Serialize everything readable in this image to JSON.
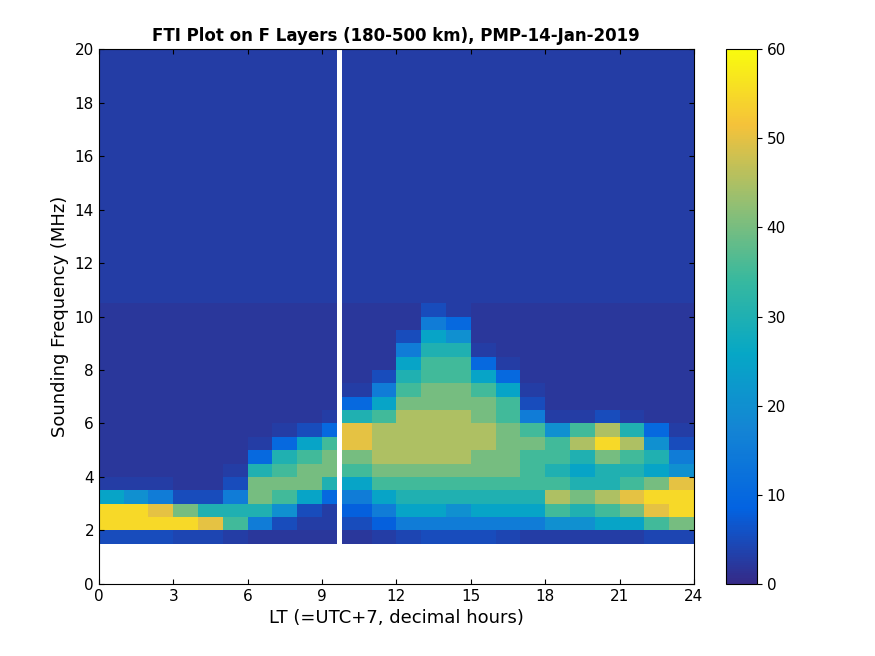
{
  "chart_data": {
    "type": "heatmap",
    "title": "FTI Plot on F Layers (180-500 km), PMP-14-Jan-2019",
    "x_label": "LT (=UTC+7, decimal hours)",
    "y_label": "Sounding Frequency (MHz)",
    "xlim": [
      0,
      24
    ],
    "xticks": [
      0,
      3,
      6,
      9,
      12,
      15,
      18,
      21,
      24
    ],
    "ylim": [
      0,
      20
    ],
    "yticks": [
      0,
      2,
      4,
      6,
      8,
      10,
      12,
      14,
      16,
      18,
      20
    ],
    "x_edges": [
      0,
      1,
      2,
      3,
      4,
      5,
      6,
      7,
      8,
      9,
      9.6,
      9.8,
      11,
      12,
      13,
      14,
      15,
      16,
      17,
      18,
      19,
      20,
      21,
      22,
      23,
      24
    ],
    "y_edges": [
      1.5,
      2,
      2.5,
      3,
      3.5,
      4,
      4.5,
      5,
      5.5,
      6,
      6.5,
      7,
      7.5,
      8,
      8.5,
      9,
      9.5,
      10,
      10.5,
      12,
      14,
      16,
      18,
      20
    ],
    "cells": [
      [
        5,
        5,
        5,
        4,
        4,
        3,
        2,
        2,
        2,
        2,
        null,
        2,
        3,
        4,
        5,
        5,
        5,
        4,
        3,
        3,
        3,
        3,
        3,
        4,
        4
      ],
      [
        55,
        55,
        55,
        55,
        50,
        35,
        15,
        5,
        3,
        3,
        null,
        5,
        8,
        15,
        15,
        15,
        15,
        15,
        15,
        20,
        20,
        25,
        25,
        35,
        40
      ],
      [
        55,
        55,
        50,
        40,
        30,
        30,
        30,
        20,
        5,
        3,
        null,
        8,
        15,
        25,
        25,
        20,
        25,
        25,
        25,
        35,
        30,
        35,
        40,
        50,
        55
      ],
      [
        25,
        20,
        15,
        5,
        5,
        15,
        40,
        35,
        25,
        10,
        null,
        15,
        25,
        30,
        30,
        30,
        30,
        30,
        30,
        45,
        40,
        45,
        50,
        55,
        55
      ],
      [
        3,
        3,
        3,
        2,
        2,
        5,
        40,
        40,
        40,
        30,
        null,
        25,
        35,
        35,
        35,
        35,
        35,
        35,
        35,
        35,
        30,
        30,
        35,
        40,
        50
      ],
      [
        2,
        2,
        2,
        2,
        2,
        3,
        30,
        35,
        40,
        40,
        null,
        35,
        40,
        40,
        40,
        40,
        40,
        40,
        35,
        30,
        25,
        30,
        30,
        25,
        20
      ],
      [
        2,
        2,
        2,
        2,
        2,
        2,
        10,
        30,
        35,
        40,
        null,
        40,
        45,
        45,
        45,
        45,
        40,
        40,
        35,
        35,
        30,
        40,
        35,
        30,
        15
      ],
      [
        2,
        2,
        2,
        2,
        2,
        2,
        3,
        10,
        25,
        35,
        null,
        50,
        45,
        45,
        45,
        45,
        45,
        40,
        40,
        35,
        45,
        55,
        45,
        20,
        5
      ],
      [
        2,
        2,
        2,
        2,
        2,
        2,
        2,
        3,
        5,
        10,
        null,
        50,
        45,
        45,
        45,
        45,
        45,
        40,
        35,
        20,
        35,
        45,
        30,
        10,
        3
      ],
      [
        2,
        2,
        2,
        2,
        2,
        2,
        2,
        2,
        2,
        3,
        null,
        30,
        35,
        45,
        45,
        45,
        40,
        35,
        15,
        3,
        3,
        5,
        3,
        2,
        2
      ],
      [
        2,
        2,
        2,
        2,
        2,
        2,
        2,
        2,
        2,
        2,
        null,
        10,
        25,
        40,
        40,
        40,
        40,
        35,
        5,
        2,
        2,
        2,
        2,
        2,
        2
      ],
      [
        2,
        2,
        2,
        2,
        2,
        2,
        2,
        2,
        2,
        2,
        null,
        3,
        15,
        35,
        40,
        40,
        35,
        25,
        3,
        2,
        2,
        2,
        2,
        2,
        2
      ],
      [
        2,
        2,
        2,
        2,
        2,
        2,
        2,
        2,
        2,
        2,
        null,
        2,
        5,
        30,
        35,
        35,
        25,
        10,
        2,
        2,
        2,
        2,
        2,
        2,
        2
      ],
      [
        2,
        2,
        2,
        2,
        2,
        2,
        2,
        2,
        2,
        2,
        null,
        2,
        2,
        25,
        35,
        35,
        10,
        3,
        2,
        2,
        2,
        2,
        2,
        2,
        2
      ],
      [
        2,
        2,
        2,
        2,
        2,
        2,
        2,
        2,
        2,
        2,
        null,
        2,
        2,
        15,
        30,
        30,
        3,
        2,
        2,
        2,
        2,
        2,
        2,
        2,
        2
      ],
      [
        2,
        2,
        2,
        2,
        2,
        2,
        2,
        2,
        2,
        2,
        null,
        2,
        2,
        5,
        25,
        20,
        2,
        2,
        2,
        2,
        2,
        2,
        2,
        2,
        2
      ],
      [
        2,
        2,
        2,
        2,
        2,
        2,
        2,
        2,
        2,
        2,
        null,
        2,
        2,
        2,
        15,
        10,
        2,
        2,
        2,
        2,
        2,
        2,
        2,
        2,
        2
      ],
      [
        2,
        2,
        2,
        2,
        2,
        2,
        2,
        2,
        2,
        2,
        null,
        2,
        2,
        2,
        5,
        3,
        2,
        2,
        2,
        2,
        2,
        2,
        2,
        2,
        2
      ],
      [
        3,
        3,
        3,
        3,
        3,
        3,
        3,
        3,
        3,
        3,
        null,
        3,
        3,
        3,
        3,
        3,
        3,
        3,
        3,
        3,
        3,
        3,
        3,
        3,
        3
      ],
      [
        3,
        3,
        3,
        3,
        3,
        3,
        3,
        3,
        3,
        3,
        null,
        3,
        3,
        3,
        3,
        3,
        3,
        3,
        3,
        3,
        3,
        3,
        3,
        3,
        3
      ],
      [
        3,
        3,
        3,
        3,
        3,
        3,
        3,
        3,
        3,
        3,
        null,
        3,
        3,
        3,
        3,
        3,
        3,
        3,
        3,
        3,
        3,
        3,
        3,
        3,
        3
      ],
      [
        3,
        3,
        3,
        3,
        3,
        3,
        3,
        3,
        3,
        3,
        null,
        3,
        3,
        3,
        3,
        3,
        3,
        3,
        3,
        3,
        3,
        3,
        3,
        3,
        3
      ],
      [
        3,
        3,
        3,
        3,
        3,
        3,
        3,
        3,
        3,
        3,
        null,
        3,
        3,
        3,
        3,
        3,
        3,
        3,
        3,
        3,
        3,
        3,
        3,
        3,
        3
      ]
    ],
    "clim": [
      0,
      60
    ],
    "colorbar_ticks": [
      0,
      10,
      20,
      30,
      40,
      50,
      60
    ]
  }
}
